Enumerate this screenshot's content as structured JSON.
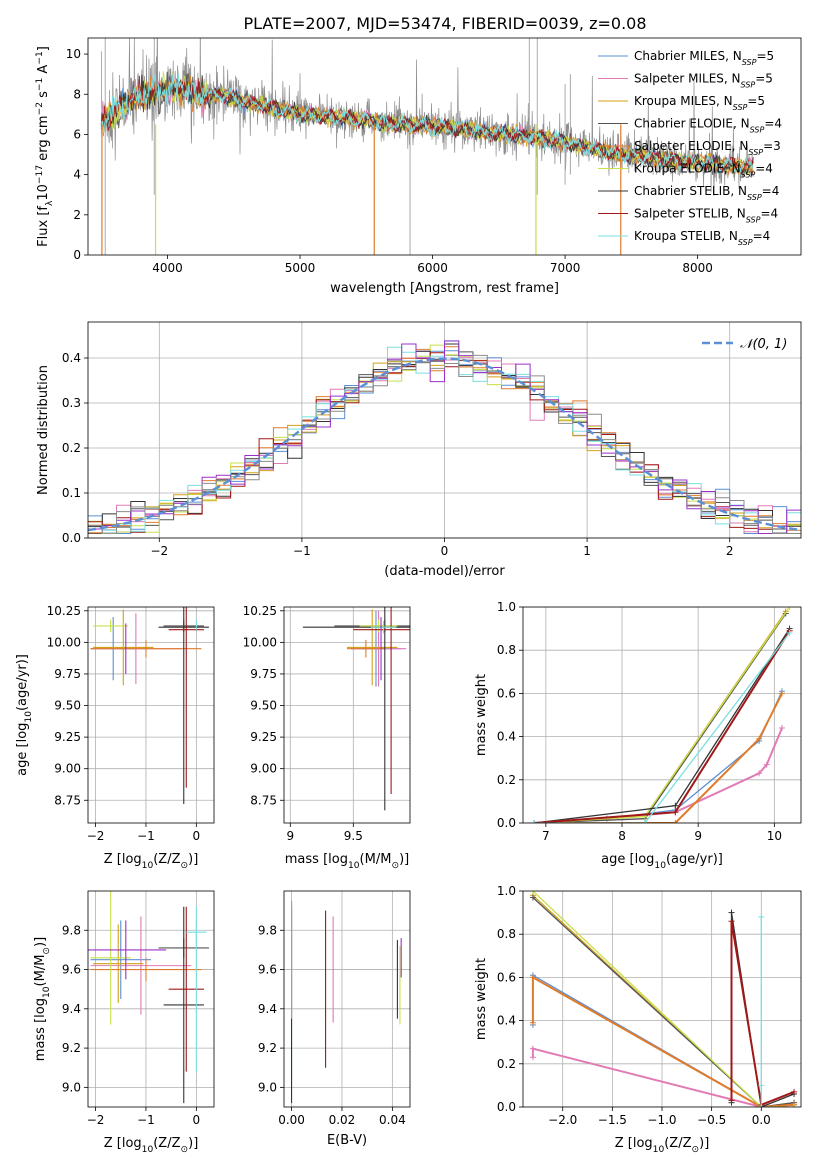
{
  "figure_title": "PLATE=2007, MJD=53474, FIBERID=0039, z=0.08",
  "colors": {
    "chabrier_miles": "#5b8fd6",
    "salpeter_miles": "#e17bb6",
    "kroupa_miles": "#d4a017",
    "chabrier_elodie": "#555555",
    "salpeter_elodie": "#e07b2a",
    "kroupa_elodie": "#c8e04a",
    "chabrier_stelib": "#333333",
    "salpeter_stelib": "#a01818",
    "kroupa_stelib": "#7adfe0",
    "purple": "#9b30c8",
    "gray": "#8c8c8c",
    "gauss": "#5b8fd6"
  },
  "chart_data": [
    {
      "id": "spectrum",
      "type": "line",
      "xlabel": "wavelength [Angstrom, rest frame]",
      "ylabel_parts": [
        "Flux [f",
        "λ",
        "10",
        "−17",
        " erg cm",
        "−2",
        " s",
        "−1",
        " A",
        "−1",
        "]"
      ],
      "xlim": [
        3400,
        8780
      ],
      "ylim": [
        0,
        10.8
      ],
      "xticks": [
        4000,
        5000,
        6000,
        7000,
        8000
      ],
      "yticks": [
        0,
        2,
        4,
        6,
        8,
        10
      ],
      "grid": false,
      "legend_position": "right",
      "legend": [
        {
          "label": "Chabrier MILES, N",
          "sub": "SSP",
          "tail": "=5",
          "color_key": "chabrier_miles"
        },
        {
          "label": "Salpeter MILES, N",
          "sub": "SSP",
          "tail": "=5",
          "color_key": "salpeter_miles"
        },
        {
          "label": "Kroupa MILES, N",
          "sub": "SSP",
          "tail": "=5",
          "color_key": "kroupa_miles"
        },
        {
          "label": "Chabrier ELODIE, N",
          "sub": "SSP",
          "tail": "=4",
          "color_key": "chabrier_elodie"
        },
        {
          "label": "Salpeter ELODIE, N",
          "sub": "SSP",
          "tail": "=3",
          "color_key": "salpeter_elodie"
        },
        {
          "label": "Kroupa ELODIE, N",
          "sub": "SSP",
          "tail": "=4",
          "color_key": "kroupa_elodie"
        },
        {
          "label": "Chabrier STELIB, N",
          "sub": "SSP",
          "tail": "=4",
          "color_key": "chabrier_stelib"
        },
        {
          "label": "Salpeter STELIB, N",
          "sub": "SSP",
          "tail": "=4",
          "color_key": "salpeter_stelib"
        },
        {
          "label": "Kroupa STELIB, N",
          "sub": "SSP",
          "tail": "=4",
          "color_key": "kroupa_stelib"
        }
      ],
      "model_continuum": {
        "x": [
          3500,
          3560,
          3620,
          3700,
          3780,
          3850,
          3930,
          4000,
          4100,
          4200,
          4300,
          4400,
          4500,
          4600,
          4700,
          4800,
          4900,
          5000,
          5200,
          5400,
          5600,
          5800,
          6000,
          6200,
          6400,
          6600,
          6800,
          7000,
          7200,
          7400,
          7600,
          7800,
          8000,
          8200,
          8400
        ],
        "y": [
          6.6,
          6.9,
          7.2,
          7.6,
          7.9,
          8.1,
          8.0,
          8.2,
          8.3,
          8.1,
          7.9,
          8.0,
          7.8,
          7.6,
          7.5,
          7.3,
          7.2,
          7.0,
          6.9,
          6.8,
          6.6,
          6.5,
          6.4,
          6.3,
          6.1,
          6.0,
          5.8,
          5.6,
          5.3,
          5.0,
          4.9,
          4.7,
          4.6,
          4.5,
          4.4
        ]
      }
    },
    {
      "id": "residuals",
      "type": "histogram",
      "xlabel": "(data-model)/error",
      "ylabel": "Normed distribution",
      "xlim": [
        -2.5,
        2.5
      ],
      "ylim": [
        0,
        0.48
      ],
      "xticks": [
        -2,
        -1,
        0,
        1,
        2
      ],
      "yticks": [
        0.0,
        0.1,
        0.2,
        0.3,
        0.4
      ],
      "grid": true,
      "legend_position": "top-right",
      "gauss_label": "𝒩(0, 1)",
      "bin_width": 0.1
    },
    {
      "id": "age_vs_Z",
      "type": "errorbar",
      "xlabel_parts": [
        "Z [log",
        "10",
        "(Z/Z",
        "⊙",
        ")]"
      ],
      "ylabel_parts": [
        "age  [log",
        "10",
        "(age/yr)]"
      ],
      "xlim": [
        -2.15,
        0.35
      ],
      "ylim": [
        8.57,
        10.28
      ],
      "xticks": [
        -2,
        -1,
        0
      ],
      "yticks": [
        8.75,
        9.0,
        9.25,
        9.5,
        9.75,
        10.0,
        10.25
      ],
      "grid": true,
      "points": [
        {
          "x": -1.65,
          "xerr": 0.45,
          "y": 9.95,
          "yerr": 0.25,
          "color_key": "chabrier_miles"
        },
        {
          "x": -1.2,
          "xerr": 0.9,
          "y": 9.95,
          "yerr": 0.28,
          "color_key": "salpeter_miles"
        },
        {
          "x": -1.45,
          "xerr": 0.6,
          "y": 9.96,
          "yerr": 0.3,
          "color_key": "kroupa_miles"
        },
        {
          "x": -0.25,
          "xerr": 0.4,
          "y": 10.13,
          "yerr": 0.05,
          "color_key": "chabrier_elodie"
        },
        {
          "x": -1.0,
          "xerr": 1.1,
          "y": 9.95,
          "yerr": 0.07,
          "color_key": "salpeter_elodie"
        },
        {
          "x": -1.7,
          "xerr": 0.35,
          "y": 10.13,
          "yerr": 0.05,
          "color_key": "kroupa_elodie"
        },
        {
          "x": -0.25,
          "xerr": 0.5,
          "y": 10.12,
          "yerr": 1.4,
          "color_key": "chabrier_stelib"
        },
        {
          "x": -0.2,
          "xerr": 0.35,
          "y": 10.1,
          "yerr": 1.25,
          "color_key": "salpeter_stelib"
        },
        {
          "x": 0.0,
          "xerr": 0.0,
          "y": 10.14,
          "yerr": 0.04,
          "color_key": "kroupa_stelib"
        },
        {
          "x": -1.4,
          "xerr": 0.0,
          "y": 9.95,
          "yerr": 0.2,
          "color_key": "purple"
        }
      ]
    },
    {
      "id": "age_vs_mass",
      "type": "errorbar",
      "xlabel_parts": [
        "mass [log",
        "10",
        "(M/M",
        "⊙",
        ")]"
      ],
      "xlim": [
        8.95,
        9.95
      ],
      "ylim": [
        8.57,
        10.28
      ],
      "xticks": [
        9.0,
        9.5
      ],
      "yticks": [
        8.75,
        9.0,
        9.25,
        9.5,
        9.75,
        10.0,
        10.25
      ],
      "grid": true,
      "points": [
        {
          "x": 9.68,
          "xerr": 0.2,
          "y": 9.95,
          "yerr": 0.3,
          "color_key": "chabrier_miles"
        },
        {
          "x": 9.7,
          "xerr": 0.22,
          "y": 9.95,
          "yerr": 0.3,
          "color_key": "salpeter_miles"
        },
        {
          "x": 9.65,
          "xerr": 0.2,
          "y": 9.96,
          "yerr": 0.3,
          "color_key": "kroupa_miles"
        },
        {
          "x": 9.75,
          "xerr": 0.4,
          "y": 10.13,
          "yerr": 0.05,
          "color_key": "chabrier_elodie"
        },
        {
          "x": 9.6,
          "xerr": 0.15,
          "y": 9.95,
          "yerr": 0.07,
          "color_key": "salpeter_elodie"
        },
        {
          "x": 9.7,
          "xerr": 0.15,
          "y": 10.13,
          "yerr": 0.05,
          "color_key": "kroupa_elodie"
        },
        {
          "x": 9.75,
          "xerr": 0.65,
          "y": 10.12,
          "yerr": 1.45,
          "color_key": "chabrier_stelib"
        },
        {
          "x": 9.8,
          "xerr": 0.3,
          "y": 10.1,
          "yerr": 1.3,
          "color_key": "salpeter_stelib"
        },
        {
          "x": 9.74,
          "xerr": 0.1,
          "y": 10.12,
          "yerr": 0.05,
          "color_key": "kroupa_stelib"
        },
        {
          "x": 9.72,
          "xerr": 0.0,
          "y": 9.95,
          "yerr": 0.25,
          "color_key": "purple"
        }
      ]
    },
    {
      "id": "massweight_vs_age",
      "type": "line",
      "xlabel_parts": [
        "age  [log",
        "10",
        "(age/yr)]"
      ],
      "ylabel": "mass weight",
      "xlim": [
        6.7,
        10.35
      ],
      "ylim": [
        0,
        1.0
      ],
      "xticks": [
        7,
        8,
        9,
        10
      ],
      "yticks": [
        0.0,
        0.2,
        0.4,
        0.6,
        0.8,
        1.0
      ],
      "grid": true,
      "series": [
        {
          "color_key": "chabrier_miles",
          "x": [
            6.85,
            7.8,
            8.7,
            9.8,
            10.1
          ],
          "y": [
            0.0,
            0.02,
            0.06,
            0.38,
            0.61
          ]
        },
        {
          "color_key": "salpeter_miles",
          "x": [
            6.85,
            7.8,
            8.7,
            9.8,
            9.9,
            10.1
          ],
          "y": [
            0.0,
            0.02,
            0.05,
            0.23,
            0.27,
            0.44
          ]
        },
        {
          "color_key": "kroupa_miles",
          "x": [
            6.85,
            8.3,
            10.15
          ],
          "y": [
            0.0,
            0.03,
            0.98
          ]
        },
        {
          "color_key": "chabrier_elodie",
          "x": [
            6.85,
            8.3,
            10.15
          ],
          "y": [
            0.0,
            0.02,
            0.97
          ]
        },
        {
          "color_key": "salpeter_elodie",
          "x": [
            6.85,
            8.7,
            9.8,
            10.1
          ],
          "y": [
            0.0,
            0.0,
            0.39,
            0.6
          ]
        },
        {
          "color_key": "kroupa_elodie",
          "x": [
            6.85,
            8.3,
            10.2
          ],
          "y": [
            0.0,
            0.03,
            1.0
          ]
        },
        {
          "color_key": "chabrier_stelib",
          "x": [
            6.85,
            8.7,
            10.2
          ],
          "y": [
            0.0,
            0.08,
            0.9
          ]
        },
        {
          "color_key": "salpeter_stelib",
          "x": [
            6.85,
            8.7,
            10.2
          ],
          "y": [
            0.0,
            0.05,
            0.89
          ]
        },
        {
          "color_key": "kroupa_stelib",
          "x": [
            6.85,
            8.3,
            10.2
          ],
          "y": [
            0.0,
            0.0,
            0.88
          ]
        }
      ]
    },
    {
      "id": "mass_vs_Z",
      "type": "errorbar",
      "xlabel_parts": [
        "Z [log",
        "10",
        "(Z/Z",
        "⊙",
        ")]"
      ],
      "ylabel_parts": [
        "mass [log",
        "10",
        "(M/M",
        "⊙",
        ")]"
      ],
      "xlim": [
        -2.15,
        0.35
      ],
      "ylim": [
        8.9,
        10.0
      ],
      "xticks": [
        -2,
        -1,
        0
      ],
      "yticks": [
        9.0,
        9.2,
        9.4,
        9.6,
        9.8
      ],
      "grid": true,
      "points": [
        {
          "x": -1.5,
          "xerr": 0.6,
          "y": 9.65,
          "yerr": 0.2,
          "color_key": "chabrier_miles"
        },
        {
          "x": -1.1,
          "xerr": 1.0,
          "y": 9.62,
          "yerr": 0.25,
          "color_key": "salpeter_miles"
        },
        {
          "x": -1.55,
          "xerr": 0.5,
          "y": 9.63,
          "yerr": 0.2,
          "color_key": "kroupa_miles"
        },
        {
          "x": -0.25,
          "xerr": 0.5,
          "y": 9.71,
          "yerr": 0.05,
          "color_key": "chabrier_elodie"
        },
        {
          "x": -1.0,
          "xerr": 1.1,
          "y": 9.6,
          "yerr": 0.06,
          "color_key": "salpeter_elodie"
        },
        {
          "x": -1.7,
          "xerr": 0.4,
          "y": 9.66,
          "yerr": 0.34,
          "color_key": "kroupa_elodie"
        },
        {
          "x": -0.25,
          "xerr": 0.4,
          "y": 9.42,
          "yerr": 0.5,
          "color_key": "chabrier_stelib"
        },
        {
          "x": -0.2,
          "xerr": 0.35,
          "y": 9.5,
          "yerr": 0.42,
          "color_key": "salpeter_stelib"
        },
        {
          "x": 0.0,
          "xerr": 0.2,
          "y": 9.79,
          "yerr": 0.05,
          "color_key": "kroupa_stelib"
        },
        {
          "x": -1.4,
          "xerr": 0.8,
          "y": 9.7,
          "yerr": 0.15,
          "color_key": "purple"
        },
        {
          "x": -0.0,
          "xerr": 0.0,
          "y": 9.5,
          "yerr": 0.42,
          "color_key": "kroupa_stelib"
        }
      ]
    },
    {
      "id": "mass_vs_EBV",
      "type": "errorbar",
      "xlabel": "E(B-V)",
      "xlim": [
        -0.003,
        0.047
      ],
      "ylim": [
        8.9,
        10.0
      ],
      "xticks": [
        0.0,
        0.02,
        0.04
      ],
      "xtick_labels": [
        "0.00",
        "0.02",
        "0.04"
      ],
      "yticks": [
        9.0,
        9.2,
        9.4,
        9.6,
        9.8
      ],
      "grid": true,
      "points": [
        {
          "x": 0.0,
          "y": 9.5,
          "yerr": 0.45,
          "color_key": "kroupa_stelib"
        },
        {
          "x": 0.0,
          "y": 9.42,
          "yerr": 0.5,
          "color_key": "chabrier_stelib"
        },
        {
          "x": 0.0,
          "y": 9.65,
          "yerr": 0.3,
          "color_key": "salpeter_miles"
        },
        {
          "x": 0.0135,
          "y": 9.5,
          "yerr": 0.4,
          "color_key": "salpeter_stelib"
        },
        {
          "x": 0.0165,
          "y": 9.6,
          "yerr": 0.27,
          "color_key": "salpeter_miles"
        },
        {
          "x": 0.042,
          "y": 9.55,
          "yerr": 0.2,
          "color_key": "chabrier_stelib"
        },
        {
          "x": 0.043,
          "y": 9.52,
          "yerr": 0.2,
          "color_key": "kroupa_elodie"
        },
        {
          "x": 0.0435,
          "y": 9.66,
          "yerr": 0.1,
          "color_key": "purple"
        }
      ]
    },
    {
      "id": "massweight_vs_Z",
      "type": "line",
      "xlabel_parts": [
        "Z [log",
        "10",
        "(Z/Z",
        "⊙",
        ")]"
      ],
      "ylabel": "mass weight",
      "xlim": [
        -2.4,
        0.4
      ],
      "ylim": [
        0,
        1.0
      ],
      "xticks": [
        -2.0,
        -1.5,
        -1.0,
        -0.5,
        0.0
      ],
      "xtick_labels": [
        "−2.0",
        "−1.5",
        "−1.0",
        "−0.5",
        "0.0"
      ],
      "yticks": [
        0.0,
        0.2,
        0.4,
        0.6,
        0.8,
        1.0
      ],
      "grid": true,
      "series": [
        {
          "color_key": "chabrier_miles",
          "x": [
            -2.3,
            -2.3,
            0.0,
            0.33,
            0.33
          ],
          "y": [
            0.38,
            0.61,
            0.0,
            0.01,
            0.0
          ]
        },
        {
          "color_key": "salpeter_miles",
          "x": [
            -2.3,
            -2.3,
            0.0,
            0.33,
            0.33
          ],
          "y": [
            0.23,
            0.27,
            0.0,
            0.01,
            0.0
          ]
        },
        {
          "color_key": "kroupa_miles",
          "x": [
            -2.3,
            0.0,
            0.33
          ],
          "y": [
            0.98,
            0.0,
            0.02
          ]
        },
        {
          "color_key": "chabrier_elodie",
          "x": [
            -2.3,
            0.0,
            0.33
          ],
          "y": [
            0.97,
            0.0,
            0.02
          ]
        },
        {
          "color_key": "salpeter_elodie",
          "x": [
            -2.3,
            -2.3,
            0.0,
            0.33
          ],
          "y": [
            0.39,
            0.6,
            0.0,
            0.01
          ]
        },
        {
          "color_key": "kroupa_elodie",
          "x": [
            -2.3,
            0.0,
            0.33
          ],
          "y": [
            1.0,
            0.0,
            0.0
          ]
        },
        {
          "color_key": "chabrier_stelib",
          "x": [
            -0.3,
            -0.3,
            0.0,
            0.33
          ],
          "y": [
            0.02,
            0.9,
            0.0,
            0.06
          ]
        },
        {
          "color_key": "salpeter_stelib",
          "x": [
            -0.3,
            -0.3,
            0.0,
            0.33
          ],
          "y": [
            0.03,
            0.86,
            0.01,
            0.07
          ]
        },
        {
          "color_key": "kroupa_stelib",
          "x": [
            0.0,
            0.0,
            0.0
          ],
          "y": [
            0.0,
            0.88,
            0.1
          ]
        }
      ]
    }
  ]
}
